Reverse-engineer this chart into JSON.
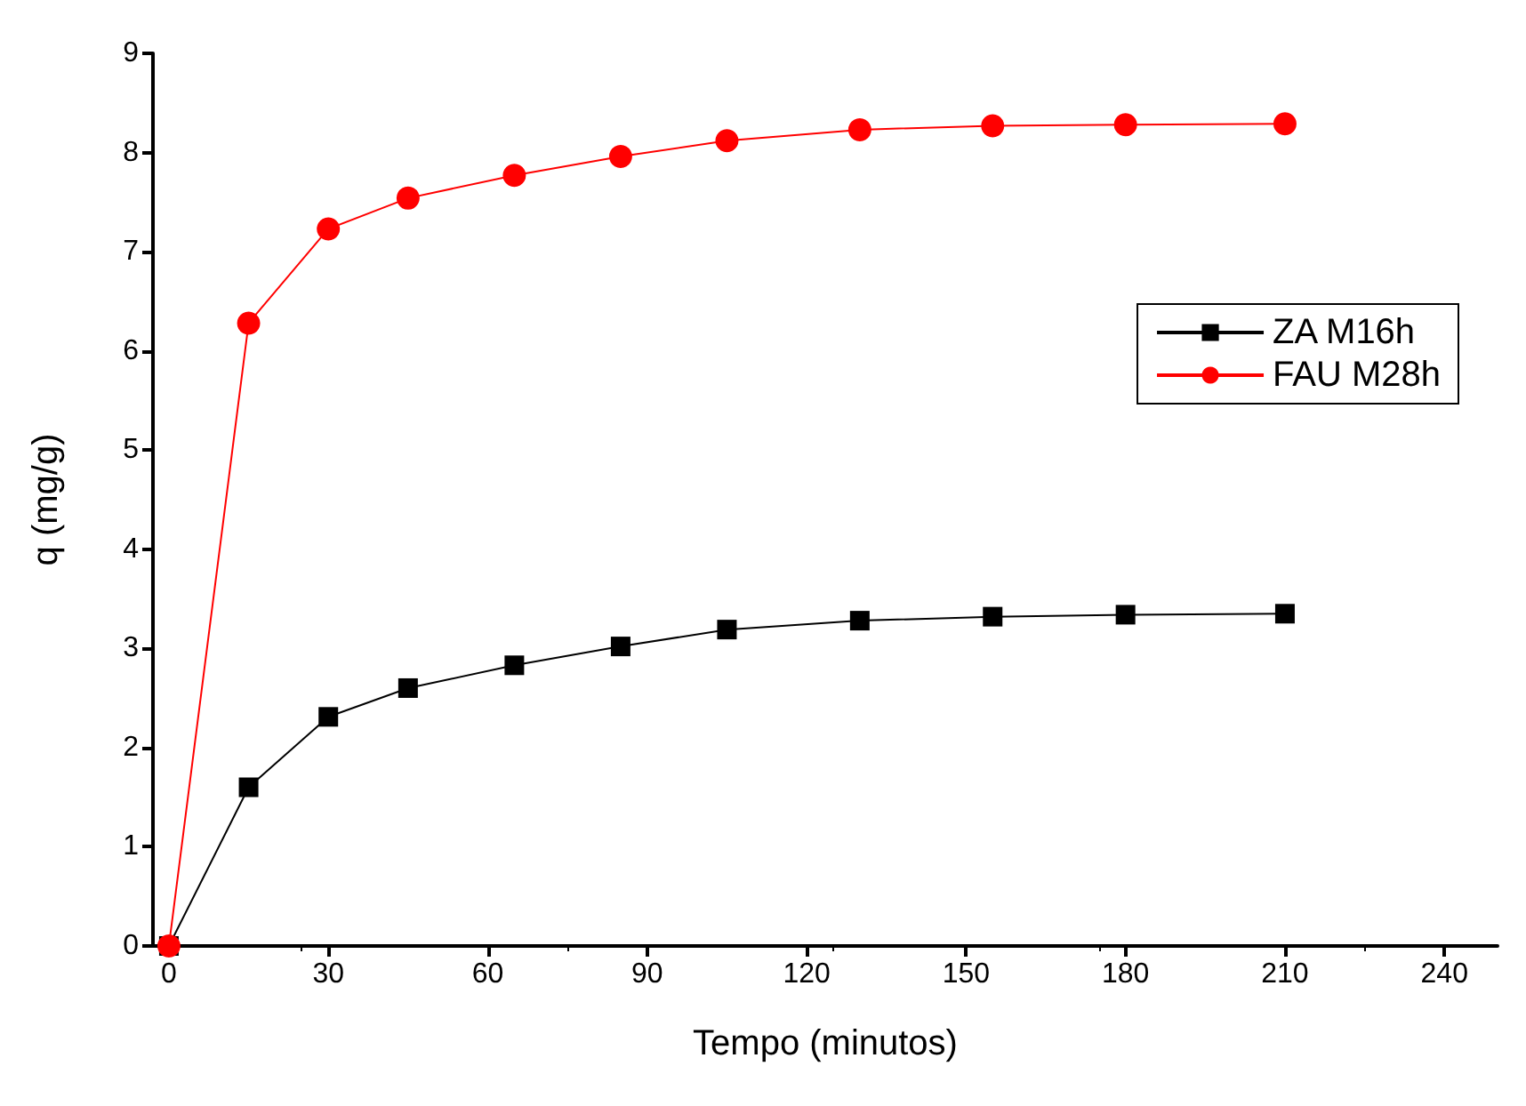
{
  "chart_data": {
    "type": "line",
    "xlabel": "Tempo (minutos)",
    "ylabel": "q (mg/g)",
    "x": [
      0,
      15,
      30,
      45,
      65,
      85,
      105,
      130,
      155,
      180,
      210
    ],
    "series": [
      {
        "name": "ZA M16h",
        "color": "#000000",
        "marker": "square",
        "values": [
          0,
          1.6,
          2.31,
          2.6,
          2.83,
          3.02,
          3.19,
          3.28,
          3.32,
          3.34,
          3.35
        ]
      },
      {
        "name": "FAU M28h",
        "color": "#ff0000",
        "marker": "circle",
        "values": [
          0,
          6.28,
          7.23,
          7.54,
          7.77,
          7.96,
          8.12,
          8.23,
          8.27,
          8.28,
          8.29
        ]
      }
    ],
    "xlim": [
      -3,
      250
    ],
    "xticks": [
      0,
      30,
      60,
      90,
      120,
      150,
      180,
      210,
      240
    ],
    "ylim": [
      0,
      9
    ],
    "yticks": [
      0,
      1,
      2,
      3,
      4,
      5,
      6,
      7,
      8,
      9
    ],
    "grid": false,
    "legend": "right",
    "line_style": "solid"
  }
}
